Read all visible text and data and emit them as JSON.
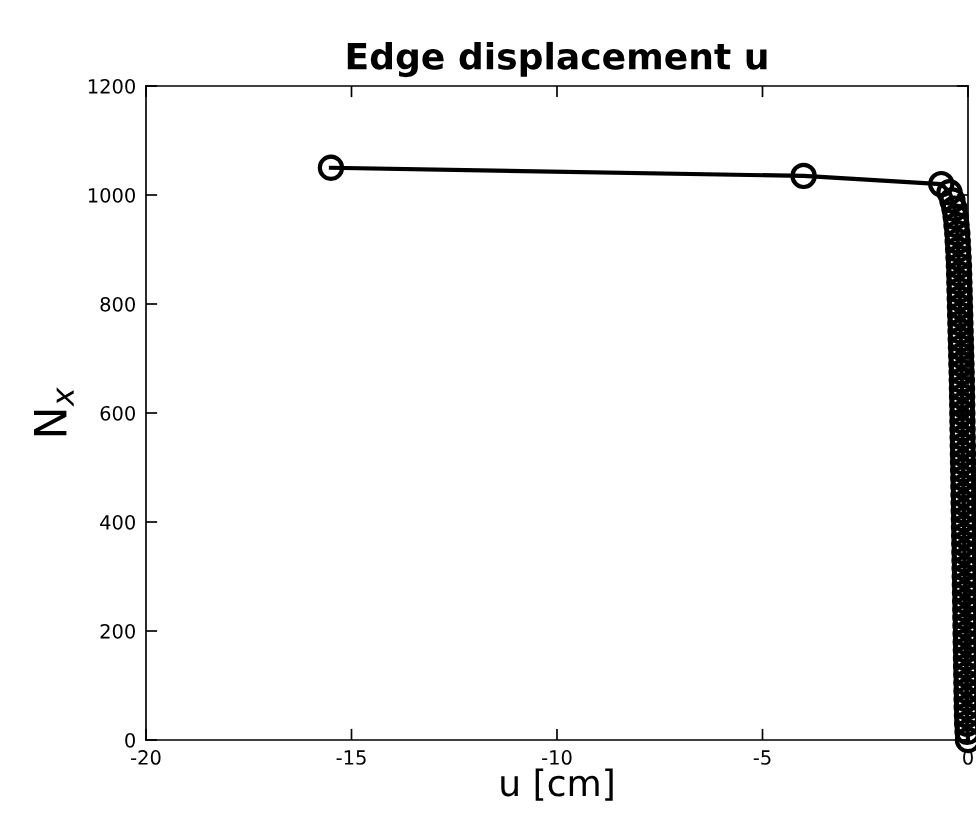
{
  "chart_data": {
    "type": "line",
    "title": "Edge displacement u",
    "xlabel": "u [cm]",
    "ylabel": "N$_{x}$",
    "xlim": [
      -20,
      0
    ],
    "xticks": [
      -20,
      -15,
      -10,
      -5,
      0
    ],
    "ylim": [
      0,
      1200
    ],
    "yticks": [
      0,
      200,
      400,
      600,
      800,
      1000,
      1200
    ],
    "grid": false,
    "marker": "circle",
    "line_style": "solid",
    "series": [
      {
        "color": "#000000",
        "x": [
          -15.5,
          -4.0,
          -0.65,
          -0.45,
          -0.38,
          -0.33,
          -0.3,
          -0.28,
          -0.26,
          -0.25,
          -0.24,
          -0.23,
          -0.22,
          -0.215,
          -0.21,
          -0.205,
          -0.2,
          -0.195,
          -0.19,
          -0.185,
          -0.18,
          -0.175,
          -0.17,
          -0.165,
          -0.16,
          -0.155,
          -0.15,
          -0.147,
          -0.144,
          -0.141,
          -0.138,
          -0.135,
          -0.132,
          -0.129,
          -0.126,
          -0.123,
          -0.12,
          -0.117,
          -0.114,
          -0.111,
          -0.108,
          -0.105,
          -0.102,
          -0.099,
          -0.096,
          -0.093,
          -0.09,
          -0.087,
          -0.084,
          -0.081,
          -0.078,
          -0.075,
          -0.072,
          -0.069,
          -0.066,
          -0.063,
          -0.06,
          -0.057,
          -0.054,
          -0.051,
          -0.048,
          -0.045,
          -0.042,
          -0.039,
          -0.036,
          -0.033,
          -0.03,
          -0.025,
          -0.02,
          -0.01,
          0.0
        ],
        "values": [
          1050,
          1035,
          1020,
          1005,
          990,
          975,
          960,
          945,
          930,
          915,
          900,
          885,
          870,
          855,
          840,
          825,
          810,
          795,
          780,
          765,
          750,
          735,
          720,
          705,
          690,
          675,
          660,
          645,
          630,
          615,
          600,
          585,
          570,
          555,
          540,
          525,
          510,
          495,
          480,
          465,
          450,
          435,
          420,
          405,
          390,
          375,
          360,
          345,
          330,
          315,
          300,
          285,
          270,
          255,
          240,
          225,
          210,
          195,
          180,
          165,
          150,
          135,
          120,
          105,
          90,
          75,
          60,
          45,
          30,
          15,
          0
        ]
      }
    ]
  }
}
